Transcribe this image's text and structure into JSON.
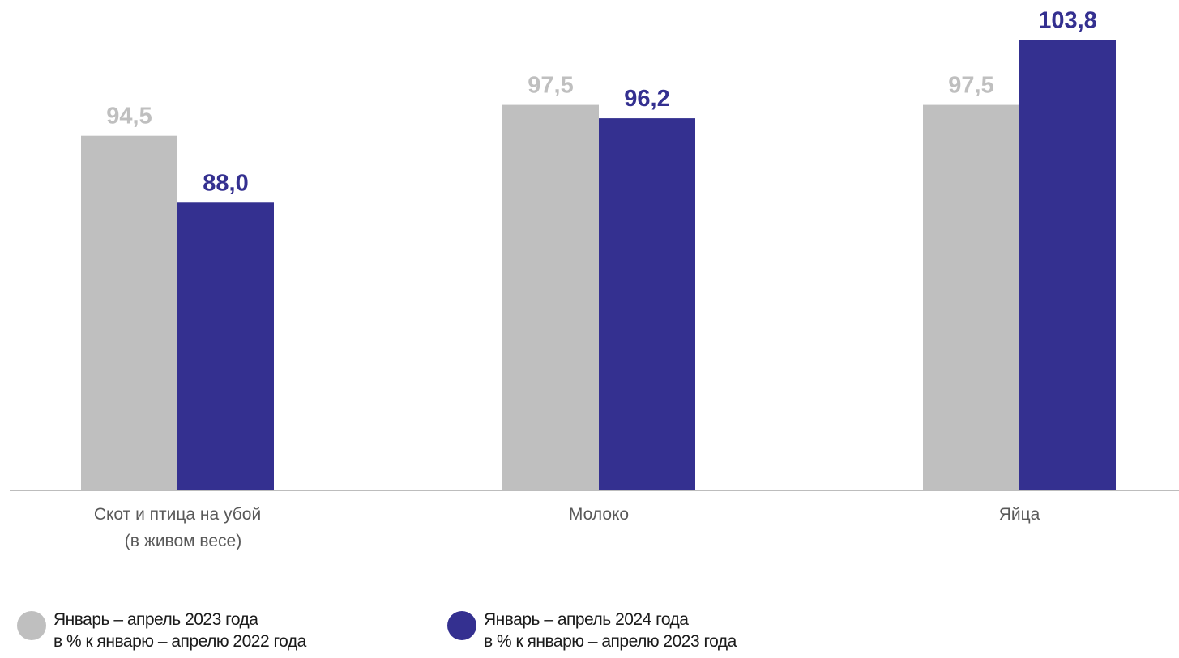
{
  "chart_data": {
    "type": "bar",
    "categories": [
      [
        "Скот и птица на убой",
        "(в живом весе)"
      ],
      [
        "Молоко"
      ],
      [
        "Яйца"
      ]
    ],
    "series": [
      {
        "name": "Январь – апрель 2023 года в % к январю – апрелю 2022 года",
        "values": [
          94.5,
          97.5,
          97.5
        ],
        "labels": [
          "94,5",
          "97,5",
          "97,5"
        ],
        "color": "#bfbfbf",
        "label_color": "#bfbfbf"
      },
      {
        "name": "Январь – апрель 2024 года в % к январю – апрелю 2023 года",
        "values": [
          88.0,
          96.2,
          103.8
        ],
        "labels": [
          "88,0",
          "96,2",
          "103,8"
        ],
        "color": "#343090",
        "label_color": "#343090"
      }
    ],
    "ylim": [
      60,
      104
    ],
    "grid": false,
    "legend_position": "bottom"
  },
  "legend": {
    "item1": {
      "line1": "Январь – апрель 2023 года",
      "line2": "в % к  январю – апрелю 2022 года",
      "color": "#bfbfbf"
    },
    "item2": {
      "line1": "Январь – апрель 2024 года",
      "line2": "в % к  январю – апрелю 2023 года",
      "color": "#343090"
    }
  }
}
